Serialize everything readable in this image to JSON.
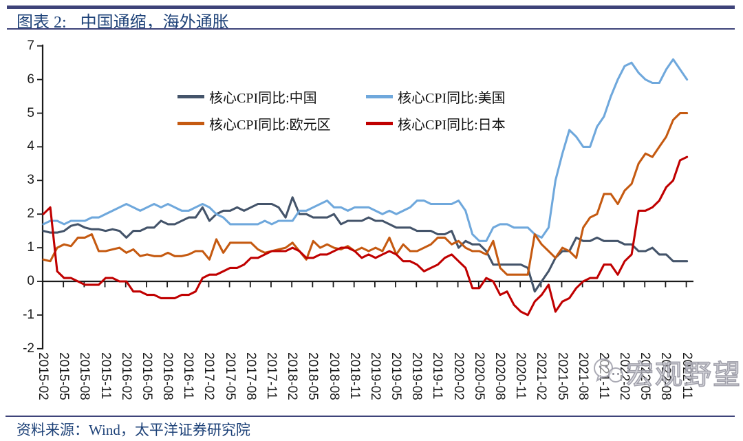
{
  "header": {
    "figure_label": "图表 2:",
    "title": "中国通缩，海外通胀"
  },
  "footer": {
    "source": "资料来源：Wind，太平洋证券研究院"
  },
  "watermark": {
    "icon": "wechat-logo",
    "text": "宏观野望"
  },
  "colors": {
    "rule": "#3E4379",
    "title_text": "#1F4379",
    "axis": "#1a1a1a"
  },
  "chart_data": {
    "type": "line",
    "title": "",
    "xlabel": "",
    "ylabel": "",
    "ylim": [
      -2,
      7
    ],
    "grid": false,
    "legend_position": "top",
    "y_ticks": [
      "7",
      "6",
      "5",
      "4",
      "3",
      "2",
      "1",
      "0",
      "-1",
      "-2"
    ],
    "x_tick_labels": [
      "2015-02",
      "2015-05",
      "2015-08",
      "2015-11",
      "2016-02",
      "2016-05",
      "2016-08",
      "2016-11",
      "2017-02",
      "2017-05",
      "2017-08",
      "2017-11",
      "2018-02",
      "2018-05",
      "2018-08",
      "2018-11",
      "2019-02",
      "2019-05",
      "2019-08",
      "2019-11",
      "2020-02",
      "2020-05",
      "2020-08",
      "2020-11",
      "2021-02",
      "2021-05",
      "2021-08",
      "2021-11",
      "2022-02",
      "2022-05",
      "2022-08",
      "2022-11"
    ],
    "x": [
      "2015-02",
      "2015-03",
      "2015-04",
      "2015-05",
      "2015-06",
      "2015-07",
      "2015-08",
      "2015-09",
      "2015-10",
      "2015-11",
      "2015-12",
      "2016-01",
      "2016-02",
      "2016-03",
      "2016-04",
      "2016-05",
      "2016-06",
      "2016-07",
      "2016-08",
      "2016-09",
      "2016-10",
      "2016-11",
      "2016-12",
      "2017-01",
      "2017-02",
      "2017-03",
      "2017-04",
      "2017-05",
      "2017-06",
      "2017-07",
      "2017-08",
      "2017-09",
      "2017-10",
      "2017-11",
      "2017-12",
      "2018-01",
      "2018-02",
      "2018-03",
      "2018-04",
      "2018-05",
      "2018-06",
      "2018-07",
      "2018-08",
      "2018-09",
      "2018-10",
      "2018-11",
      "2018-12",
      "2019-01",
      "2019-02",
      "2019-03",
      "2019-04",
      "2019-05",
      "2019-06",
      "2019-07",
      "2019-08",
      "2019-09",
      "2019-10",
      "2019-11",
      "2019-12",
      "2020-01",
      "2020-02",
      "2020-03",
      "2020-04",
      "2020-05",
      "2020-06",
      "2020-07",
      "2020-08",
      "2020-09",
      "2020-10",
      "2020-11",
      "2020-12",
      "2021-01",
      "2021-02",
      "2021-03",
      "2021-04",
      "2021-05",
      "2021-06",
      "2021-07",
      "2021-08",
      "2021-09",
      "2021-10",
      "2021-11",
      "2021-12",
      "2022-01",
      "2022-02",
      "2022-03",
      "2022-04",
      "2022-05",
      "2022-06",
      "2022-07",
      "2022-08",
      "2022-09",
      "2022-10",
      "2022-11"
    ],
    "series": [
      {
        "id": "china",
        "name": "核心CPI同比:中国",
        "color": "#44546A",
        "values": [
          1.5,
          1.45,
          1.45,
          1.5,
          1.65,
          1.7,
          1.6,
          1.55,
          1.55,
          1.5,
          1.55,
          1.5,
          1.3,
          1.5,
          1.5,
          1.6,
          1.6,
          1.8,
          1.7,
          1.7,
          1.8,
          1.9,
          1.9,
          2.2,
          1.8,
          2.0,
          2.1,
          2.1,
          2.2,
          2.1,
          2.2,
          2.3,
          2.3,
          2.3,
          2.2,
          1.9,
          2.5,
          2.0,
          2.0,
          1.9,
          1.9,
          1.9,
          2.0,
          1.7,
          1.8,
          1.8,
          1.8,
          1.9,
          1.8,
          1.8,
          1.7,
          1.6,
          1.6,
          1.6,
          1.5,
          1.5,
          1.5,
          1.4,
          1.4,
          1.5,
          1.0,
          1.2,
          1.1,
          1.1,
          0.9,
          0.5,
          0.5,
          0.5,
          0.5,
          0.5,
          0.4,
          -0.3,
          0.0,
          0.3,
          0.7,
          0.9,
          0.9,
          1.3,
          1.2,
          1.2,
          1.3,
          1.2,
          1.2,
          1.2,
          1.1,
          1.1,
          0.9,
          0.9,
          1.0,
          0.8,
          0.8,
          0.6,
          0.6,
          0.6
        ]
      },
      {
        "id": "us",
        "name": "核心CPI同比:美国",
        "color": "#6FA8DC",
        "values": [
          1.7,
          1.8,
          1.8,
          1.7,
          1.8,
          1.8,
          1.8,
          1.9,
          1.9,
          2.0,
          2.1,
          2.2,
          2.3,
          2.2,
          2.1,
          2.2,
          2.3,
          2.2,
          2.3,
          2.2,
          2.1,
          2.1,
          2.2,
          2.3,
          2.2,
          2.0,
          1.9,
          1.7,
          1.7,
          1.7,
          1.7,
          1.7,
          1.8,
          1.7,
          1.8,
          1.8,
          1.8,
          2.1,
          2.1,
          2.2,
          2.3,
          2.4,
          2.2,
          2.2,
          2.1,
          2.2,
          2.2,
          2.2,
          2.1,
          2.0,
          2.1,
          2.0,
          2.1,
          2.2,
          2.4,
          2.4,
          2.3,
          2.3,
          2.3,
          2.3,
          2.4,
          2.1,
          1.4,
          1.2,
          1.2,
          1.6,
          1.7,
          1.7,
          1.6,
          1.6,
          1.6,
          1.4,
          1.3,
          1.6,
          3.0,
          3.8,
          4.5,
          4.3,
          4.0,
          4.0,
          4.6,
          4.9,
          5.5,
          6.0,
          6.4,
          6.5,
          6.2,
          6.0,
          5.9,
          5.9,
          6.3,
          6.6,
          6.3,
          6.0
        ]
      },
      {
        "id": "eurozone",
        "name": "核心CPI同比:欧元区",
        "color": "#C55A11",
        "values": [
          0.65,
          0.6,
          1.0,
          1.1,
          1.05,
          1.3,
          1.3,
          1.4,
          0.9,
          0.9,
          0.95,
          1.0,
          0.85,
          0.95,
          0.75,
          0.8,
          0.75,
          0.75,
          0.85,
          0.75,
          0.75,
          0.8,
          0.9,
          0.9,
          0.65,
          1.25,
          0.85,
          1.15,
          1.15,
          1.15,
          1.15,
          0.95,
          0.85,
          0.9,
          0.95,
          1.0,
          1.15,
          0.9,
          0.65,
          1.2,
          1.0,
          1.1,
          1.0,
          0.95,
          1.05,
          0.9,
          1.0,
          0.9,
          1.0,
          0.9,
          1.3,
          0.8,
          1.1,
          0.9,
          0.9,
          1.0,
          1.1,
          1.3,
          1.3,
          1.1,
          1.2,
          1.0,
          0.9,
          0.9,
          0.8,
          1.2,
          0.4,
          0.2,
          0.2,
          0.2,
          0.2,
          1.4,
          1.1,
          0.9,
          0.7,
          1.0,
          0.9,
          0.7,
          1.6,
          1.9,
          2.0,
          2.6,
          2.6,
          2.3,
          2.7,
          2.9,
          3.5,
          3.8,
          3.7,
          4.0,
          4.3,
          4.8,
          5.0,
          5.0
        ]
      },
      {
        "id": "japan",
        "name": "核心CPI同比:日本",
        "color": "#C00000",
        "values": [
          2.0,
          2.2,
          0.3,
          0.1,
          0.1,
          0.0,
          -0.1,
          -0.1,
          -0.1,
          0.1,
          0.1,
          0.0,
          0.0,
          -0.3,
          -0.3,
          -0.4,
          -0.4,
          -0.5,
          -0.5,
          -0.5,
          -0.4,
          -0.4,
          -0.3,
          0.1,
          0.2,
          0.2,
          0.3,
          0.4,
          0.4,
          0.5,
          0.7,
          0.7,
          0.8,
          0.9,
          0.9,
          0.9,
          1.0,
          0.9,
          0.7,
          0.7,
          0.8,
          0.8,
          0.9,
          1.0,
          1.0,
          0.9,
          0.7,
          0.8,
          0.7,
          0.8,
          0.9,
          0.8,
          0.6,
          0.6,
          0.5,
          0.3,
          0.4,
          0.5,
          0.7,
          0.8,
          0.6,
          0.4,
          -0.2,
          -0.2,
          0.1,
          0.0,
          -0.4,
          -0.3,
          -0.7,
          -0.9,
          -1.0,
          -0.6,
          -0.4,
          -0.1,
          -0.9,
          -0.6,
          -0.5,
          -0.2,
          0.0,
          0.1,
          0.1,
          0.5,
          0.5,
          0.2,
          0.6,
          0.8,
          2.1,
          2.1,
          2.2,
          2.4,
          2.8,
          3.0,
          3.6,
          3.7
        ]
      }
    ]
  }
}
